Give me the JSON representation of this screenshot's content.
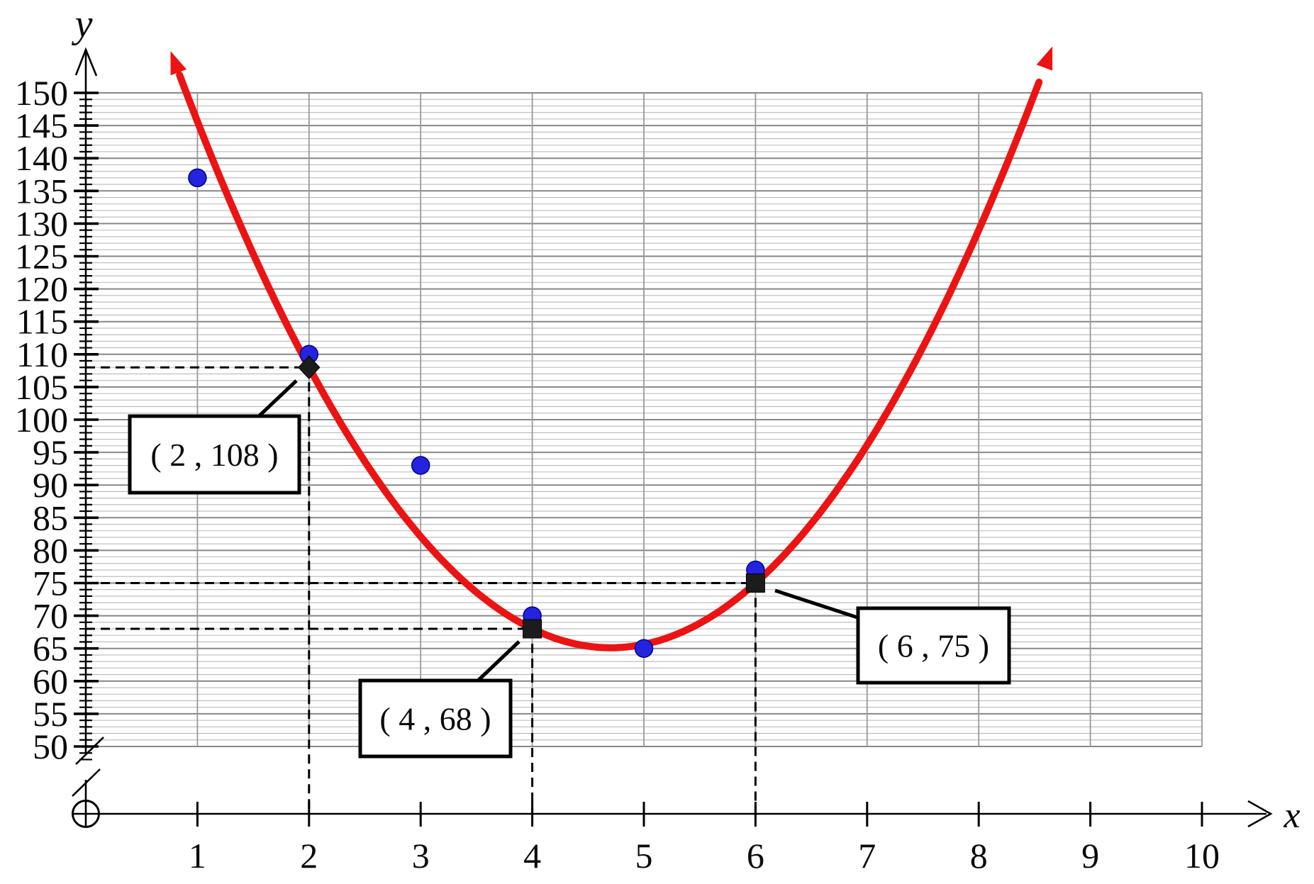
{
  "axis_labels": {
    "y": "y",
    "x": "x"
  },
  "chart_data": {
    "type": "scatter",
    "title": "",
    "xlabel": "x",
    "ylabel": "y",
    "x_ticks": [
      1,
      2,
      3,
      4,
      5,
      6,
      7,
      8,
      9,
      10
    ],
    "y_ticks": [
      50,
      55,
      60,
      65,
      70,
      75,
      80,
      85,
      90,
      95,
      100,
      105,
      110,
      115,
      120,
      125,
      130,
      135,
      140,
      145,
      150
    ],
    "xlim": [
      0,
      10.6
    ],
    "ylim": [
      50,
      150
    ],
    "y_axis_break_below_50": true,
    "grid": {
      "on": true,
      "horizontal_minor_step": 1,
      "horizontal_major_step": 5,
      "vertical_step": 1
    },
    "legend_position": "none",
    "series": [
      {
        "name": "scatter-points",
        "type": "scatter",
        "color": "#2323e0",
        "points": [
          [
            1,
            137
          ],
          [
            2,
            110
          ],
          [
            3,
            93
          ],
          [
            4,
            70
          ],
          [
            5,
            65
          ],
          [
            6,
            77
          ]
        ]
      },
      {
        "name": "fitted-parabola",
        "type": "quadratic-curve",
        "color": "#ec1313",
        "coefficients": {
          "a": 5.875,
          "b": -55.25,
          "c": 195
        },
        "x_domain": [
          0.84,
          8.58
        ],
        "arrows_both_ends": true
      }
    ],
    "marked_points": [
      {
        "x": 2,
        "y": 108,
        "marker": "diamond",
        "label": "( 2 , 108 )"
      },
      {
        "x": 4,
        "y": 68,
        "marker": "square",
        "label": "( 4 , 68 )"
      },
      {
        "x": 6,
        "y": 75,
        "marker": "square",
        "label": "( 6 , 75 )"
      }
    ],
    "colors": {
      "curve": "#ec1313",
      "points": "#2323e0",
      "points_edge": "#000090",
      "marked": "#1c1c1c",
      "grid_minor": "#b9b9b9",
      "grid_major": "#878787",
      "grid_vertical": "#999999",
      "axis": "#000000",
      "callout_bg": "#ffffff"
    }
  }
}
